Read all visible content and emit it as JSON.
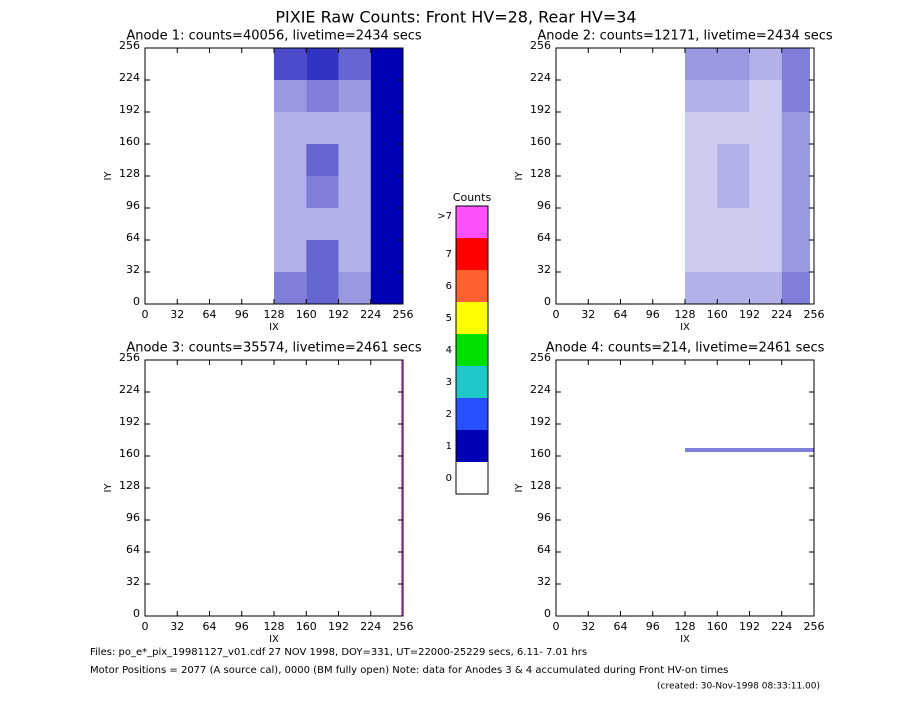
{
  "title": "PIXIE Raw Counts:  Front HV=28, Rear HV=34",
  "colorbar": {
    "title": "Counts",
    "ticks": [
      0,
      1,
      2,
      3,
      4,
      5,
      6,
      7,
      {
        "value": 8,
        "label": ">7"
      }
    ],
    "colors": [
      "#ffffff",
      "#0000b4",
      "#2850ff",
      "#1ec8c8",
      "#00e000",
      "#ffff00",
      "#ff6030",
      "#ff0000",
      "#ff50ff"
    ]
  },
  "footer": [
    "Files: po_e*_pix_19981127_v01.cdf   27 NOV 1998, DOY=331, UT=22000-25229 secs,  6.11- 7.01 hrs",
    "Motor Positions = 2077 (A source cal), 0000 (BM fully open)    Note: data for Anodes 3 & 4 accumulated during Front HV-on times",
    "(created: 30-Nov-1998 08:33:11.00)"
  ],
  "chart_data": [
    {
      "type": "heatmap",
      "title": "Anode 1: counts=40056, livetime=2434 secs",
      "xlabel": "IX",
      "ylabel": "IY",
      "xlim": [
        0,
        256
      ],
      "ylim": [
        0,
        256
      ],
      "xticks": [
        0,
        32,
        64,
        96,
        128,
        160,
        192,
        224,
        256
      ],
      "yticks": [
        0,
        32,
        64,
        96,
        128,
        160,
        192,
        224,
        256
      ],
      "x_edges": [
        0,
        128,
        160,
        192,
        224,
        256
      ],
      "y_edges": [
        0,
        32,
        64,
        96,
        128,
        160,
        192,
        224,
        256
      ],
      "z": [
        [
          0,
          0.5,
          0.6,
          0.4,
          1.5
        ],
        [
          0,
          0.3,
          0.6,
          0.3,
          1.4
        ],
        [
          0,
          0.3,
          0.3,
          0.3,
          1.2
        ],
        [
          0,
          0.3,
          0.5,
          0.3,
          1.3
        ],
        [
          0,
          0.3,
          0.6,
          0.3,
          1.5
        ],
        [
          0,
          0.3,
          0.3,
          0.3,
          1.3
        ],
        [
          0,
          0.4,
          0.5,
          0.4,
          1.5
        ],
        [
          0,
          0.7,
          0.8,
          0.6,
          1.6
        ]
      ]
    },
    {
      "type": "heatmap",
      "title": "Anode 2: counts=12171, livetime=2434 secs",
      "xlabel": "IX",
      "ylabel": "IY",
      "xlim": [
        0,
        256
      ],
      "ylim": [
        0,
        256
      ],
      "xticks": [
        0,
        32,
        64,
        96,
        128,
        160,
        192,
        224,
        256
      ],
      "yticks": [
        0,
        32,
        64,
        96,
        128,
        160,
        192,
        224,
        256
      ],
      "x_edges": [
        0,
        128,
        160,
        192,
        224,
        252
      ],
      "y_edges": [
        0,
        32,
        64,
        96,
        128,
        160,
        192,
        224,
        256
      ],
      "z": [
        [
          0,
          0.3,
          0.3,
          0.3,
          0.5
        ],
        [
          0,
          0.2,
          0.2,
          0.2,
          0.4
        ],
        [
          0,
          0.2,
          0.2,
          0.2,
          0.4
        ],
        [
          0,
          0.2,
          0.3,
          0.2,
          0.4
        ],
        [
          0,
          0.2,
          0.3,
          0.2,
          0.4
        ],
        [
          0,
          0.2,
          0.2,
          0.2,
          0.4
        ],
        [
          0,
          0.3,
          0.3,
          0.2,
          0.5
        ],
        [
          0,
          0.4,
          0.4,
          0.3,
          0.5
        ]
      ]
    },
    {
      "type": "heatmap",
      "title": "Anode 3: counts=35574, livetime=2461 secs",
      "xlabel": "IX",
      "ylabel": "IY",
      "xlim": [
        0,
        256
      ],
      "ylim": [
        0,
        256
      ],
      "xticks": [
        0,
        32,
        64,
        96,
        128,
        160,
        192,
        224,
        256
      ],
      "yticks": [
        0,
        32,
        64,
        96,
        128,
        160,
        192,
        224,
        256
      ],
      "x_edges": [
        0,
        254,
        256
      ],
      "y_edges": [
        0,
        256
      ],
      "z": [
        [
          0,
          8
        ]
      ]
    },
    {
      "type": "heatmap",
      "title": "Anode 4: counts=214, livetime=2461 secs",
      "xlabel": "IX",
      "ylabel": "IY",
      "xlim": [
        0,
        256
      ],
      "ylim": [
        0,
        256
      ],
      "xticks": [
        0,
        32,
        64,
        96,
        128,
        160,
        192,
        224,
        256
      ],
      "yticks": [
        0,
        32,
        64,
        96,
        128,
        160,
        192,
        224,
        256
      ],
      "x_edges": [
        0,
        128,
        256
      ],
      "y_edges": [
        0,
        164,
        168,
        256
      ],
      "z": [
        [
          0,
          0
        ],
        [
          0,
          0.5
        ],
        [
          0,
          0
        ]
      ]
    }
  ]
}
